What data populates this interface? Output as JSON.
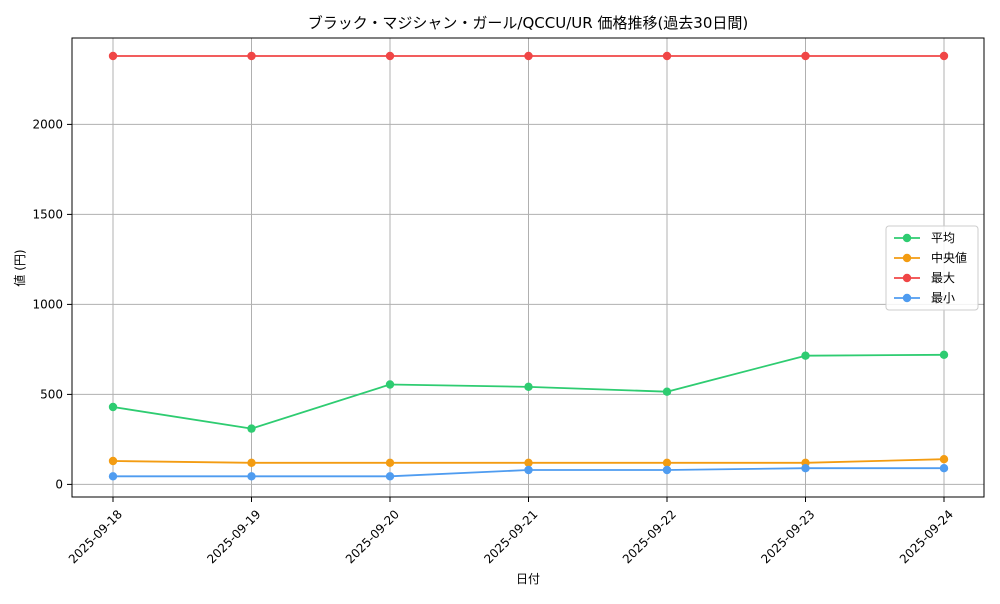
{
  "chart_data": {
    "type": "line",
    "title": "ブラック・マジシャン・ガール/QCCU/UR 価格推移(過去30日間)",
    "xlabel": "日付",
    "ylabel": "値 (円)",
    "categories": [
      "2025-09-18",
      "2025-09-19",
      "2025-09-20",
      "2025-09-21",
      "2025-09-22",
      "2025-09-23",
      "2025-09-24"
    ],
    "ylim": [
      -70,
      2480
    ],
    "yticks": [
      0,
      500,
      1000,
      1500,
      2000
    ],
    "grid": true,
    "legend_position": "center-right",
    "series": [
      {
        "name": "平均",
        "color": "#2ecc71",
        "values": [
          430,
          310,
          555,
          542,
          515,
          715,
          720
        ]
      },
      {
        "name": "中央値",
        "color": "#f39c12",
        "values": [
          130,
          120,
          120,
          120,
          120,
          120,
          140
        ]
      },
      {
        "name": "最大",
        "color": "#f04646",
        "values": [
          2380,
          2380,
          2380,
          2380,
          2380,
          2380,
          2380
        ]
      },
      {
        "name": "最小",
        "color": "#4f9cf0",
        "values": [
          45,
          45,
          45,
          80,
          80,
          90,
          90
        ]
      }
    ]
  }
}
